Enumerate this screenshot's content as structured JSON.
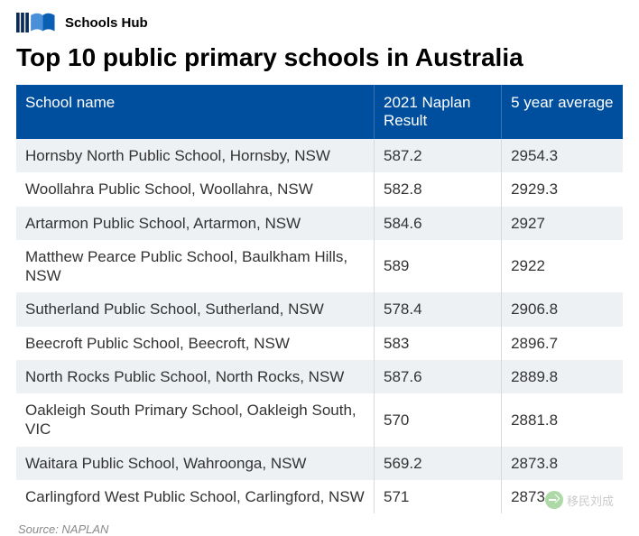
{
  "brand": "Schools Hub",
  "title": "Top 10 public primary schools in Australia",
  "source": "Source: NAPLAN",
  "watermark": "移民刘成",
  "logo": {
    "bars_color": "#0a2b57",
    "book_color": "#0a5fb2",
    "book_light": "#4a90d9"
  },
  "table": {
    "type": "table",
    "header_bg": "#004f9f",
    "header_fg": "#ffffff",
    "row_odd_bg": "#eef1f4",
    "row_even_bg": "#ffffff",
    "border_color": "#d9d9d9",
    "font_size": 17,
    "columns": [
      {
        "key": "name",
        "label": "School name",
        "width": "59%"
      },
      {
        "key": "naplan",
        "label": "2021 Naplan Result",
        "width": "21%"
      },
      {
        "key": "avg",
        "label": "5 year average",
        "width": "20%"
      }
    ],
    "rows": [
      {
        "name": "Hornsby North Public School, Hornsby, NSW",
        "naplan": "587.2",
        "avg": "2954.3"
      },
      {
        "name": "Woollahra Public School, Woollahra, NSW",
        "naplan": "582.8",
        "avg": "2929.3"
      },
      {
        "name": "Artarmon Public School, Artarmon, NSW",
        "naplan": "584.6",
        "avg": "2927"
      },
      {
        "name": "Matthew Pearce Public School, Baulkham Hills, NSW",
        "naplan": "589",
        "avg": "2922"
      },
      {
        "name": "Sutherland Public School, Sutherland, NSW",
        "naplan": "578.4",
        "avg": "2906.8"
      },
      {
        "name": "Beecroft Public School, Beecroft, NSW",
        "naplan": "583",
        "avg": "2896.7"
      },
      {
        "name": "North Rocks Public School, North Rocks, NSW",
        "naplan": "587.6",
        "avg": "2889.8"
      },
      {
        "name": "Oakleigh South Primary School, Oakleigh South, VIC",
        "naplan": "570",
        "avg": "2881.8"
      },
      {
        "name": "Waitara Public School, Wahroonga, NSW",
        "naplan": "569.2",
        "avg": "2873.8"
      },
      {
        "name": "Carlingford West Public School, Carlingford, NSW",
        "naplan": "571",
        "avg": "2873"
      }
    ]
  }
}
